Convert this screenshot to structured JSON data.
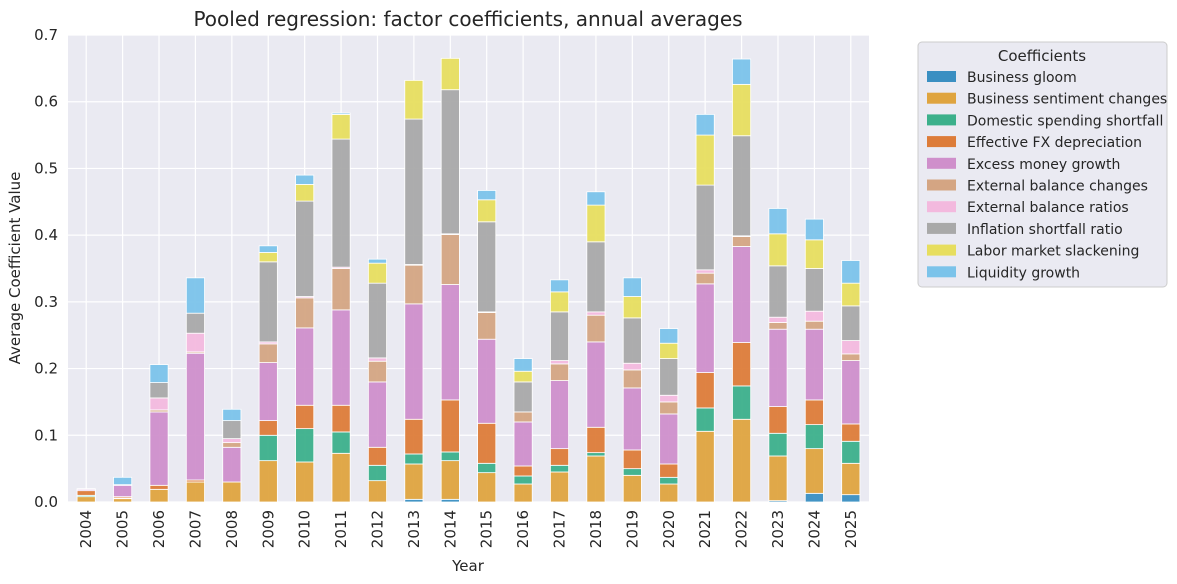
{
  "chart_data": {
    "type": "bar",
    "stacked": true,
    "title": "Pooled regression: factor coefficients, annual averages",
    "xlabel": "Year",
    "ylabel": "Average Coefficient Value",
    "ylim": [
      0,
      0.7
    ],
    "yticks": [
      "0.0",
      "0.1",
      "0.2",
      "0.3",
      "0.4",
      "0.5",
      "0.6",
      "0.7"
    ],
    "grid": true,
    "legend_title": "Coefficients",
    "legend_position": "outside-right",
    "categories": [
      "2004",
      "2005",
      "2006",
      "2007",
      "2008",
      "2009",
      "2010",
      "2011",
      "2012",
      "2013",
      "2014",
      "2015",
      "2016",
      "2017",
      "2018",
      "2019",
      "2020",
      "2021",
      "2022",
      "2023",
      "2024",
      "2025"
    ],
    "series": [
      {
        "name": "Business gloom",
        "color": "#3a8fc2",
        "values": [
          0,
          0,
          0,
          0,
          0,
          0,
          0,
          0,
          0,
          0.004,
          0.004,
          0,
          0,
          0,
          0,
          0,
          0,
          0,
          0,
          0.002,
          0.013,
          0.011
        ]
      },
      {
        "name": "Business sentiment changes",
        "color": "#dfa43f",
        "values": [
          0.008,
          0.005,
          0.019,
          0.03,
          0.03,
          0.062,
          0.06,
          0.073,
          0.032,
          0.053,
          0.058,
          0.044,
          0.027,
          0.045,
          0.069,
          0.04,
          0.027,
          0.106,
          0.124,
          0.067,
          0.067,
          0.047
        ]
      },
      {
        "name": "Domestic spending shortfall",
        "color": "#3cb08b",
        "values": [
          0.002,
          0.001,
          0,
          0,
          0,
          0.038,
          0.05,
          0.032,
          0.023,
          0.015,
          0.013,
          0.014,
          0.012,
          0.01,
          0.005,
          0.01,
          0.01,
          0.035,
          0.05,
          0.034,
          0.036,
          0.033
        ]
      },
      {
        "name": "Effective FX depreciation",
        "color": "#dd7c39",
        "values": [
          0.007,
          0.002,
          0.006,
          0.003,
          0,
          0.022,
          0.035,
          0.04,
          0.027,
          0.052,
          0.078,
          0.06,
          0.015,
          0.025,
          0.038,
          0.028,
          0.02,
          0.053,
          0.065,
          0.04,
          0.037,
          0.026
        ]
      },
      {
        "name": "Excess money growth",
        "color": "#cf8fcb",
        "values": [
          0.002,
          0.017,
          0.11,
          0.19,
          0.052,
          0.087,
          0.116,
          0.143,
          0.098,
          0.173,
          0.173,
          0.126,
          0.066,
          0.102,
          0.128,
          0.093,
          0.075,
          0.133,
          0.144,
          0.116,
          0.106,
          0.095
        ]
      },
      {
        "name": "External balance changes",
        "color": "#d4a583",
        "values": [
          0,
          0,
          0.003,
          0.002,
          0.007,
          0.028,
          0.045,
          0.062,
          0.031,
          0.058,
          0.075,
          0.04,
          0.015,
          0.025,
          0.04,
          0.027,
          0.018,
          0.016,
          0.015,
          0.01,
          0.012,
          0.01
        ]
      },
      {
        "name": "External balance ratios",
        "color": "#f3b9de",
        "values": [
          0,
          0.001,
          0.018,
          0.028,
          0.006,
          0.003,
          0.002,
          0.002,
          0.005,
          0.001,
          0.001,
          0.001,
          0,
          0.005,
          0.005,
          0.01,
          0.01,
          0.005,
          0.001,
          0.008,
          0.015,
          0.02
        ]
      },
      {
        "name": "Inflation shortfall ratio",
        "color": "#a9a9a9",
        "values": [
          0,
          0,
          0.023,
          0.03,
          0.027,
          0.12,
          0.143,
          0.192,
          0.112,
          0.218,
          0.216,
          0.135,
          0.045,
          0.073,
          0.105,
          0.068,
          0.055,
          0.127,
          0.15,
          0.077,
          0.064,
          0.052
        ]
      },
      {
        "name": "Labor market slackening",
        "color": "#e7de5f",
        "values": [
          0,
          0,
          0,
          0,
          0,
          0.014,
          0.025,
          0.037,
          0.03,
          0.058,
          0.047,
          0.033,
          0.016,
          0.03,
          0.055,
          0.032,
          0.023,
          0.075,
          0.077,
          0.048,
          0.043,
          0.034
        ]
      },
      {
        "name": "Liquidity growth",
        "color": "#7bc3ea",
        "values": [
          0.001,
          0.011,
          0.027,
          0.053,
          0.017,
          0.01,
          0.014,
          0.002,
          0.006,
          0,
          0,
          0.014,
          0.019,
          0.018,
          0.02,
          0.028,
          0.022,
          0.031,
          0.038,
          0.038,
          0.031,
          0.034
        ]
      }
    ]
  }
}
